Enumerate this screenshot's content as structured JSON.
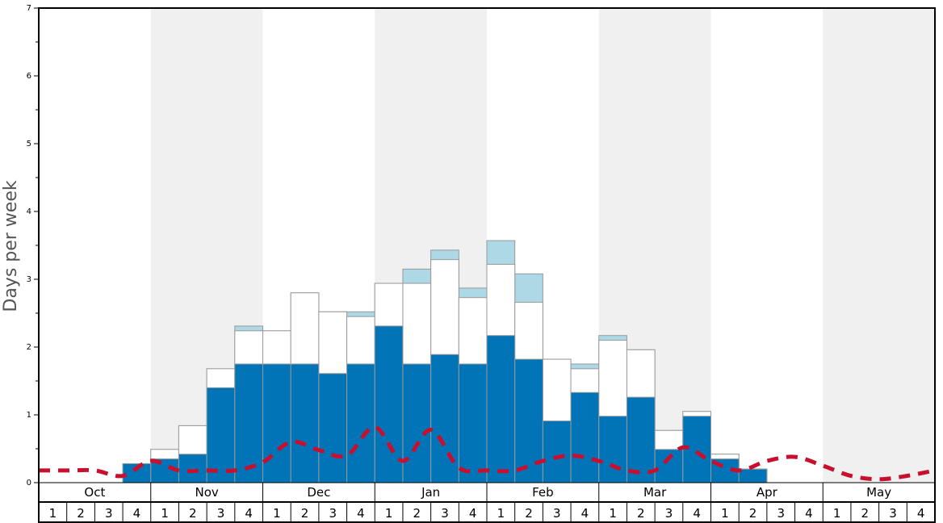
{
  "chart_data": {
    "type": "bar",
    "ylabel": "Days per week",
    "ylim": [
      0,
      7
    ],
    "yticks": [
      0,
      1,
      2,
      3,
      4,
      5,
      6,
      7
    ],
    "months": [
      "Oct",
      "Nov",
      "Dec",
      "Jan",
      "Feb",
      "Mar",
      "Apr",
      "May"
    ],
    "weeks": [
      "1",
      "2",
      "3",
      "4"
    ],
    "series": [
      {
        "color": "#0074b7",
        "values": [
          0,
          0,
          0,
          0.28,
          0.35,
          0.42,
          1.4,
          1.75,
          1.75,
          1.75,
          1.61,
          1.75,
          2.31,
          1.75,
          1.89,
          1.75,
          2.17,
          1.82,
          0.91,
          1.33,
          0.98,
          1.26,
          0.49,
          0.98,
          0.35,
          0.2,
          0,
          0,
          0,
          0,
          0,
          0
        ]
      },
      {
        "color": "#ffffff",
        "values": [
          0,
          0,
          0,
          0.28,
          0.49,
          0.84,
          1.68,
          2.24,
          2.24,
          2.8,
          2.52,
          2.45,
          2.94,
          2.94,
          3.29,
          2.73,
          3.22,
          2.66,
          1.82,
          1.68,
          2.1,
          1.96,
          0.77,
          1.05,
          0.42,
          0.2,
          0,
          0,
          0,
          0,
          0,
          0
        ]
      },
      {
        "color": "#add8e6",
        "values": [
          0,
          0,
          0,
          0.28,
          0.49,
          0.84,
          1.68,
          2.31,
          2.24,
          2.8,
          2.52,
          2.52,
          2.94,
          3.15,
          3.43,
          2.87,
          3.57,
          3.08,
          1.82,
          1.75,
          2.17,
          1.96,
          0.77,
          1.05,
          0.42,
          0.2,
          0,
          0,
          0,
          0,
          0,
          0
        ]
      },
      {
        "type": "line",
        "color": "#c8102e",
        "values": [
          0.18,
          0.18,
          0.18,
          0.1,
          0.32,
          0.18,
          0.18,
          0.18,
          0.3,
          0.6,
          0.48,
          0.4,
          0.82,
          0.32,
          0.78,
          0.22,
          0.18,
          0.18,
          0.32,
          0.4,
          0.32,
          0.18,
          0.18,
          0.52,
          0.32,
          0.18,
          0.32,
          0.38,
          0.25,
          0.1,
          0.05,
          0.1,
          0.18
        ]
      }
    ],
    "colors": {
      "shade": "#f0f0f0",
      "grid": "#999999",
      "frame": "#000000"
    }
  }
}
